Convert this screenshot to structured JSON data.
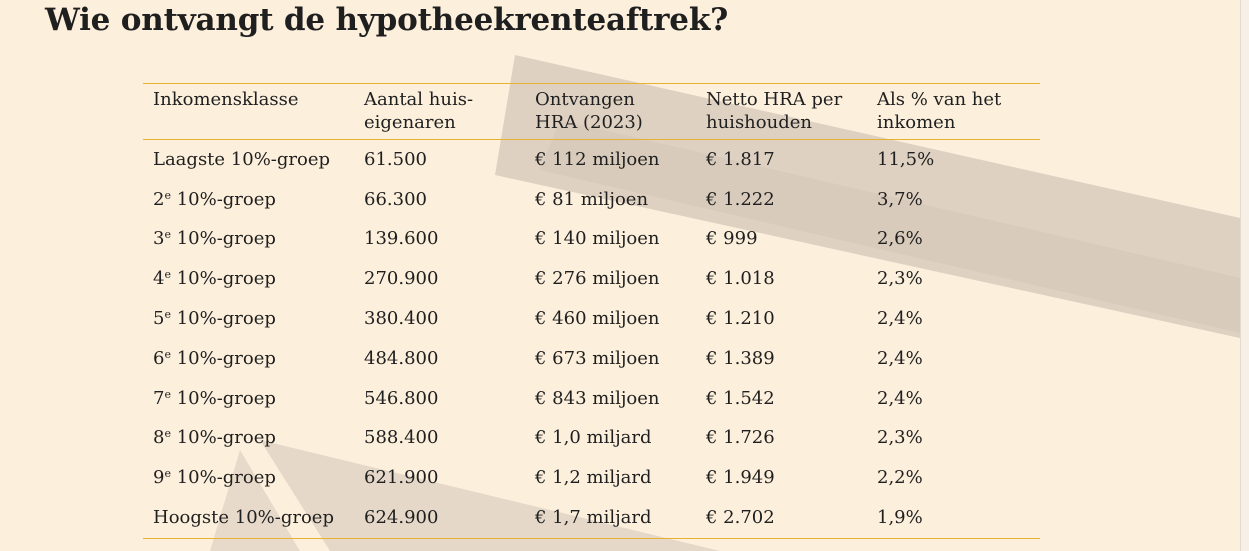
{
  "title": "Wie ontvangt de hypotheekrenteaftrek?",
  "columns": [
    {
      "line1": "Inkomensklasse",
      "line2": ""
    },
    {
      "line1": "Aantal huis-",
      "line2": "eigenaren"
    },
    {
      "line1": "Ontvangen",
      "line2": "HRA (2023)"
    },
    {
      "line1": "Netto HRA per",
      "line2": "huishouden"
    },
    {
      "line1": "Als % van het",
      "line2": "inkomen"
    }
  ],
  "rows": [
    {
      "group_pre": "Laagste 10%-groep",
      "ordinal": "",
      "group_post": "",
      "owners": "61.500",
      "received": "€ 112 miljoen",
      "net": "€ 1.817",
      "pct": "11,5%"
    },
    {
      "group_pre": "2",
      "ordinal": "e",
      "group_post": " 10%-groep",
      "owners": "66.300",
      "received": "€ 81 miljoen",
      "net": "€ 1.222",
      "pct": "3,7%"
    },
    {
      "group_pre": "3",
      "ordinal": "e",
      "group_post": " 10%-groep",
      "owners": "139.600",
      "received": "€ 140 miljoen",
      "net": "€ 999",
      "pct": "2,6%"
    },
    {
      "group_pre": "4",
      "ordinal": "e",
      "group_post": " 10%-groep",
      "owners": "270.900",
      "received": "€ 276 miljoen",
      "net": "€ 1.018",
      "pct": "2,3%"
    },
    {
      "group_pre": "5",
      "ordinal": "e",
      "group_post": " 10%-groep",
      "owners": "380.400",
      "received": "€ 460 miljoen",
      "net": "€ 1.210",
      "pct": "2,4%"
    },
    {
      "group_pre": "6",
      "ordinal": "e",
      "group_post": " 10%-groep",
      "owners": "484.800",
      "received": "€ 673 miljoen",
      "net": "€ 1.389",
      "pct": "2,4%"
    },
    {
      "group_pre": "7",
      "ordinal": "e",
      "group_post": " 10%-groep",
      "owners": "546.800",
      "received": "€ 843 miljoen",
      "net": "€ 1.542",
      "pct": "2,4%"
    },
    {
      "group_pre": "8",
      "ordinal": "e",
      "group_post": " 10%-groep",
      "owners": "588.400",
      "received": "€ 1,0 miljard",
      "net": "€ 1.726",
      "pct": "2,3%"
    },
    {
      "group_pre": "9",
      "ordinal": "e",
      "group_post": " 10%-groep",
      "owners": "621.900",
      "received": "€ 1,2 miljard",
      "net": "€ 1.949",
      "pct": "2,2%"
    },
    {
      "group_pre": "Hoogste 10%-groep",
      "ordinal": "",
      "group_post": "",
      "owners": "624.900",
      "received": "€ 1,7 miljard",
      "net": "€ 2.702",
      "pct": "1,9%"
    }
  ],
  "colors": {
    "background": "#fcefdc",
    "rule": "#e8b130",
    "decor_arrow": "#d8cbbd",
    "text": "#1f1f1f"
  }
}
